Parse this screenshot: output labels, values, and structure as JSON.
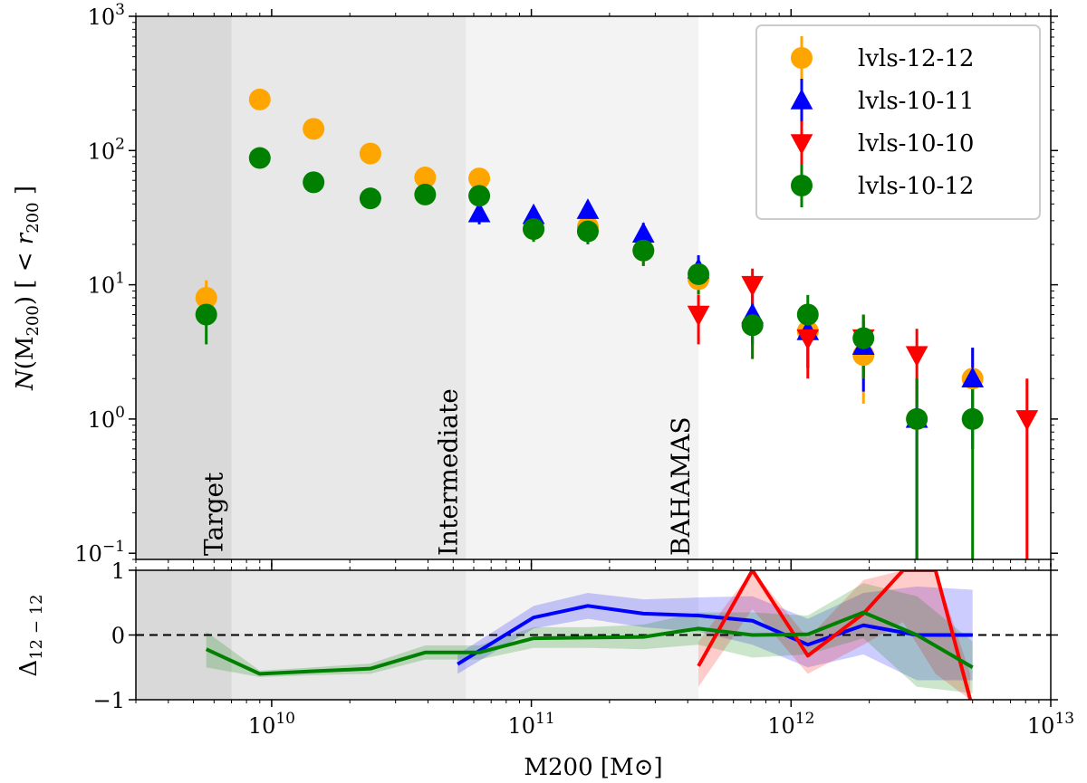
{
  "chart_data": [
    {
      "panel": "main",
      "type": "scatter",
      "x_scale": "log",
      "y_scale": "log",
      "xlim": [
        3000000000.0,
        10000000000000.0
      ],
      "ylim": [
        0.09,
        1000
      ],
      "xlabel": "M200 [M⊙]",
      "ylabel": "N(M200) [ < r200 ]",
      "ylabel_parts": {
        "prefix": "N",
        "mass": "(M",
        "sub": "200",
        "mid": ") [ < ",
        "r": "r",
        "rsub": "200",
        "suffix": " ]"
      },
      "x_ticks": [
        {
          "value": 10000000000.0,
          "base": "10",
          "exp": "10"
        },
        {
          "value": 100000000000.0,
          "base": "10",
          "exp": "11"
        },
        {
          "value": 1000000000000.0,
          "base": "10",
          "exp": "12"
        },
        {
          "value": 10000000000000.0,
          "base": "10",
          "exp": "13"
        }
      ],
      "y_ticks": [
        {
          "value": 0.1,
          "base": "10",
          "exp": "−1"
        },
        {
          "value": 1,
          "base": "10",
          "exp": "0"
        },
        {
          "value": 10,
          "base": "10",
          "exp": "1"
        },
        {
          "value": 100,
          "base": "10",
          "exp": "2"
        },
        {
          "value": 1000,
          "base": "10",
          "exp": "3"
        }
      ],
      "regions": [
        {
          "name": "Target",
          "x0": 3000000000.0,
          "x1": 7000000000.0,
          "color": "#d9d9d9"
        },
        {
          "name": "Intermediate",
          "x0": 7000000000.0,
          "x1": 56000000000.0,
          "color": "#e8e8e8"
        },
        {
          "name": "BAHAMAS",
          "x0": 56000000000.0,
          "x1": 440000000000.0,
          "color": "#f3f3f3"
        }
      ],
      "legend_position": "top-right",
      "series": [
        {
          "name": "lvls-12-12",
          "color": "#ffa500",
          "marker": "circle",
          "x": [
            5600000000.0,
            9000000000.0,
            14500000000.0,
            24000000000.0,
            39000000000.0,
            63000000000.0,
            102000000000.0,
            165000000000.0,
            270000000000.0,
            440000000000.0,
            710000000000.0,
            1160000000000.0,
            1900000000000.0,
            3050000000000.0,
            5000000000000.0
          ],
          "y": [
            8,
            240,
            145,
            95,
            63,
            62,
            26,
            27,
            18,
            11,
            5,
            4.5,
            3,
            1,
            2
          ],
          "yerr": [
            2.8,
            15.5,
            12,
            9.7,
            7.9,
            7.9,
            5.1,
            5.2,
            4.2,
            3.3,
            2.2,
            2.1,
            1.7,
            1,
            1.4
          ]
        },
        {
          "name": "lvls-10-11",
          "color": "#0000ff",
          "marker": "triangle-up",
          "x": [
            63000000000.0,
            102000000000.0,
            165000000000.0,
            270000000000.0,
            440000000000.0,
            710000000000.0,
            1160000000000.0,
            1900000000000.0,
            3050000000000.0,
            5000000000000.0
          ],
          "y": [
            34,
            33,
            36,
            24,
            13,
            6,
            4.5,
            3.5,
            1,
            2
          ],
          "yerr": [
            5.8,
            5.7,
            6,
            4.9,
            3.6,
            2.4,
            2.1,
            1.9,
            1,
            1.4
          ]
        },
        {
          "name": "lvls-10-10",
          "color": "#ff0000",
          "marker": "triangle-down",
          "x": [
            440000000000.0,
            710000000000.0,
            1160000000000.0,
            1900000000000.0,
            3050000000000.0,
            8100000000000.0
          ],
          "y": [
            6,
            10,
            4,
            4,
            3,
            1
          ],
          "yerr": [
            2.4,
            3.2,
            2,
            2,
            1.7,
            1
          ]
        },
        {
          "name": "lvls-10-12",
          "color": "#008000",
          "marker": "circle",
          "x": [
            5600000000.0,
            9000000000.0,
            14500000000.0,
            24000000000.0,
            39000000000.0,
            63000000000.0,
            102000000000.0,
            165000000000.0,
            270000000000.0,
            440000000000.0,
            710000000000.0,
            1160000000000.0,
            1900000000000.0,
            3050000000000.0,
            5000000000000.0
          ],
          "y": [
            6,
            88,
            58,
            44,
            47,
            46,
            26,
            25,
            18,
            12,
            5,
            6,
            4,
            1,
            1
          ],
          "yerr": [
            2.4,
            9.4,
            7.6,
            6.6,
            6.9,
            6.8,
            5.1,
            5,
            4.2,
            3.5,
            2.2,
            2.4,
            2,
            1,
            1
          ]
        }
      ]
    },
    {
      "panel": "residual",
      "type": "line",
      "x_scale": "log",
      "xlim": [
        3000000000.0,
        10000000000000.0
      ],
      "ylim": [
        -1,
        1
      ],
      "ylabel": "Δ12−12",
      "ylabel_parts": {
        "base": "Δ",
        "sub": "12 − 12"
      },
      "y_ticks": [
        {
          "value": 1,
          "label": "1"
        },
        {
          "value": 0,
          "label": "0"
        },
        {
          "value": -1,
          "label": "−1"
        }
      ],
      "reference_line": 0,
      "series": [
        {
          "name": "lvls-10-11",
          "color": "#0000ff",
          "x": [
            52000000000.0,
            102000000000.0,
            165000000000.0,
            270000000000.0,
            440000000000.0,
            710000000000.0,
            1160000000000.0,
            1900000000000.0,
            3050000000000.0,
            5000000000000.0
          ],
          "y": [
            -0.45,
            0.27,
            0.45,
            0.33,
            0.3,
            0.22,
            -0.15,
            0.15,
            0,
            0
          ],
          "band_lo": [
            -0.6,
            0.1,
            0.25,
            0.12,
            0.05,
            -0.15,
            -0.5,
            -0.3,
            -0.7,
            -0.7
          ],
          "band_hi": [
            -0.3,
            0.45,
            0.65,
            0.55,
            0.58,
            0.6,
            0.25,
            0.65,
            0.75,
            0.7
          ]
        },
        {
          "name": "lvls-10-10",
          "color": "#ff0000",
          "x": [
            440000000000.0,
            710000000000.0,
            1160000000000.0,
            1900000000000.0,
            2700000000000.0,
            3600000000000.0,
            4900000000000.0
          ],
          "y": [
            -0.48,
            1.0,
            -0.32,
            0.33,
            1.0,
            1.0,
            -1.0
          ],
          "band_lo": [
            -0.8,
            0.4,
            -0.6,
            -0.15,
            0.2,
            -0.6,
            -1.0
          ],
          "band_hi": [
            -0.1,
            1.0,
            -0.05,
            0.85,
            1.0,
            1.0,
            -0.6
          ]
        },
        {
          "name": "lvls-10-12",
          "color": "#008000",
          "x": [
            5600000000.0,
            9000000000.0,
            14500000000.0,
            24000000000.0,
            39000000000.0,
            63000000000.0,
            102000000000.0,
            165000000000.0,
            270000000000.0,
            440000000000.0,
            710000000000.0,
            1160000000000.0,
            1900000000000.0,
            3050000000000.0,
            5000000000000.0
          ],
          "y": [
            -0.22,
            -0.6,
            -0.56,
            -0.52,
            -0.27,
            -0.27,
            -0.05,
            -0.04,
            -0.03,
            0.1,
            0,
            0.01,
            0.35,
            0,
            -0.5
          ],
          "band_lo": [
            -0.5,
            -0.65,
            -0.62,
            -0.6,
            -0.38,
            -0.38,
            -0.2,
            -0.2,
            -0.22,
            -0.15,
            -0.35,
            -0.3,
            -0.05,
            -0.8,
            -0.9
          ],
          "band_hi": [
            0.05,
            -0.55,
            -0.5,
            -0.44,
            -0.16,
            -0.16,
            0.12,
            0.12,
            0.16,
            0.35,
            0.35,
            0.3,
            0.8,
            0.6,
            -0.1
          ]
        }
      ]
    }
  ]
}
